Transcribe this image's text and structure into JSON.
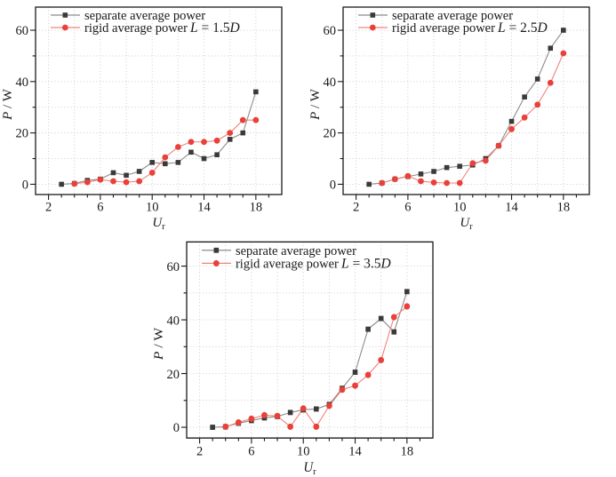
{
  "figure": {
    "background": "#ffffff",
    "text_color": "#1a1a1a",
    "grid_color": "#c8c8c8",
    "legend": [
      {
        "label": "separate average power",
        "marker": "square",
        "marker_color": "#3a3a3a",
        "line_color": "#8c8c8c"
      },
      {
        "label": "rigid average power",
        "marker": "circle",
        "marker_color": "#e8413a",
        "line_color": "#f0837b"
      }
    ],
    "axes": {
      "xlabel_italic": "U",
      "xlabel_sub": "r",
      "ylabel_italic": "P",
      "ylabel_rest": " / W",
      "x_range": [
        1,
        20
      ],
      "y_range": [
        -4,
        69
      ],
      "x_ticks_major": [
        2,
        6,
        10,
        14,
        18
      ],
      "x_tick_minor_step": 1,
      "y_ticks_major": [
        0,
        20,
        40,
        60
      ],
      "y_tick_minor_step": 10,
      "grid_style": "dotted",
      "x_grid_step": 2,
      "y_grid_step": 10
    }
  },
  "chart_data": [
    {
      "type": "line",
      "title_lhs": "L",
      "title_mid": " = 1.5",
      "title_rhs": "D",
      "series": [
        {
          "name": "separate average power",
          "x": [
            3,
            4,
            5,
            6,
            7,
            8,
            9,
            10,
            11,
            12,
            13,
            14,
            15,
            16,
            17,
            18
          ],
          "y": [
            0,
            0.3,
            1.5,
            2,
            4.5,
            3.5,
            5,
            8.5,
            8,
            8.5,
            12.5,
            10,
            11.5,
            17.5,
            20,
            36
          ]
        },
        {
          "name": "rigid average power",
          "x": [
            4,
            5,
            6,
            7,
            8,
            9,
            10,
            11,
            12,
            13,
            14,
            15,
            16,
            17,
            18
          ],
          "y": [
            0.2,
            0.8,
            1.8,
            1.2,
            0.8,
            1.2,
            4.5,
            10.5,
            14.5,
            16.5,
            16.5,
            17,
            20,
            25,
            25
          ]
        }
      ]
    },
    {
      "type": "line",
      "title_lhs": "L",
      "title_mid": " = 2.5",
      "title_rhs": "D",
      "series": [
        {
          "name": "separate average power",
          "x": [
            3,
            4,
            5,
            6,
            7,
            8,
            9,
            10,
            11,
            12,
            13,
            14,
            15,
            16,
            17,
            18
          ],
          "y": [
            0,
            0.5,
            2,
            3,
            4,
            5,
            6.5,
            7,
            7.5,
            10,
            15,
            24.5,
            34,
            41,
            53,
            60
          ]
        },
        {
          "name": "rigid average power",
          "x": [
            4,
            5,
            6,
            7,
            8,
            9,
            10,
            11,
            12,
            13,
            14,
            15,
            16,
            17,
            18
          ],
          "y": [
            0.5,
            2,
            3.2,
            1.2,
            0.7,
            0.5,
            0.5,
            8.2,
            9.2,
            15,
            21.5,
            26,
            31,
            39.5,
            51
          ]
        }
      ]
    },
    {
      "type": "line",
      "title_lhs": "L",
      "title_mid": " = 3.5",
      "title_rhs": "D",
      "series": [
        {
          "name": "separate average power",
          "x": [
            3,
            4,
            5,
            6,
            7,
            8,
            9,
            10,
            11,
            12,
            13,
            14,
            15,
            16,
            17,
            18
          ],
          "y": [
            0,
            0.2,
            1.5,
            2.5,
            3.5,
            4,
            5.5,
            6.5,
            6.8,
            8.5,
            14.5,
            20.5,
            36.5,
            40.5,
            35.5,
            50.5
          ]
        },
        {
          "name": "rigid average power",
          "x": [
            4,
            5,
            6,
            7,
            8,
            9,
            10,
            11,
            12,
            13,
            14,
            15,
            16,
            17,
            18
          ],
          "y": [
            0.2,
            1.8,
            3.2,
            4.5,
            4.2,
            0.2,
            7,
            0.2,
            8,
            14,
            15.5,
            19.5,
            25,
            41,
            45
          ]
        }
      ]
    }
  ]
}
